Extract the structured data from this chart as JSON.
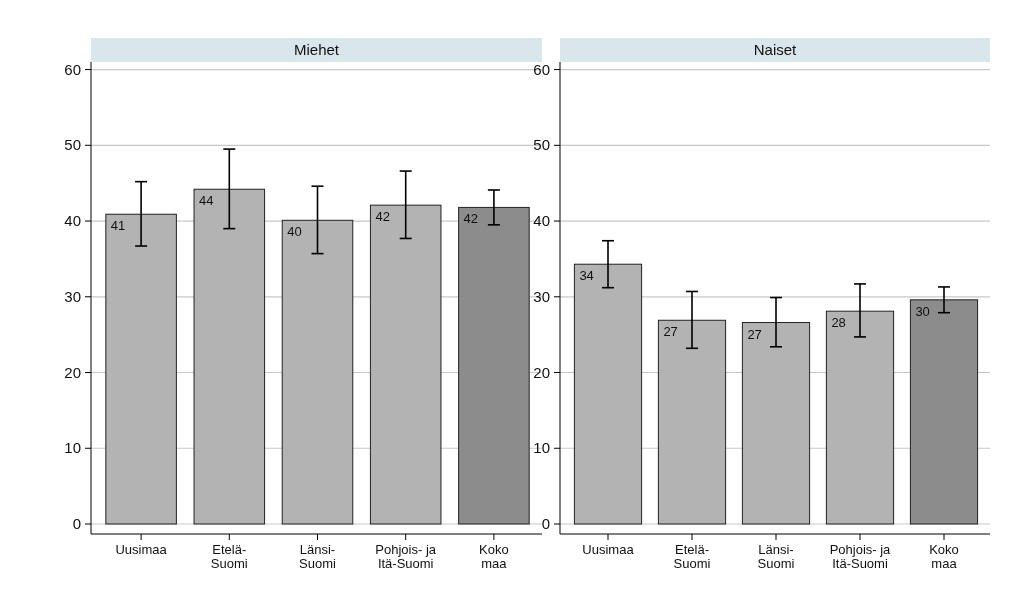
{
  "chart_data": [
    {
      "type": "bar",
      "title": "Miehet",
      "categories": [
        "Uusimaa",
        "Etelä-\nSuomi",
        "Länsi-\nSuomi",
        "Pohjois- ja\nItä-Suomi",
        "Koko\nmaa"
      ],
      "values": [
        40.9,
        44.2,
        40.1,
        42.1,
        41.8
      ],
      "value_labels": [
        "41",
        "44",
        "40",
        "42",
        "42"
      ],
      "colors": [
        "#b3b3b3",
        "#b3b3b3",
        "#b3b3b3",
        "#b3b3b3",
        "#8c8c8c"
      ],
      "errors": [
        [
          36.7,
          45.2
        ],
        [
          39.0,
          49.5
        ],
        [
          35.7,
          44.6
        ],
        [
          37.7,
          46.6
        ],
        [
          39.5,
          44.1
        ]
      ],
      "ylim": [
        0,
        61
      ],
      "yticks": [
        0,
        10,
        20,
        30,
        40,
        50,
        60
      ],
      "grid": "y"
    },
    {
      "type": "bar",
      "title": "Naiset",
      "categories": [
        "Uusimaa",
        "Etelä-\nSuomi",
        "Länsi-\nSuomi",
        "Pohjois- ja\nItä-Suomi",
        "Koko\nmaa"
      ],
      "values": [
        34.3,
        26.9,
        26.6,
        28.1,
        29.6
      ],
      "value_labels": [
        "34",
        "27",
        "27",
        "28",
        "30"
      ],
      "colors": [
        "#b3b3b3",
        "#b3b3b3",
        "#b3b3b3",
        "#b3b3b3",
        "#8c8c8c"
      ],
      "errors": [
        [
          31.2,
          37.4
        ],
        [
          23.2,
          30.7
        ],
        [
          23.4,
          29.9
        ],
        [
          24.7,
          31.7
        ],
        [
          27.9,
          31.3
        ]
      ],
      "ylim": [
        0,
        61
      ],
      "yticks": [
        0,
        10,
        20,
        30,
        40,
        50,
        60
      ],
      "grid": "y"
    }
  ]
}
